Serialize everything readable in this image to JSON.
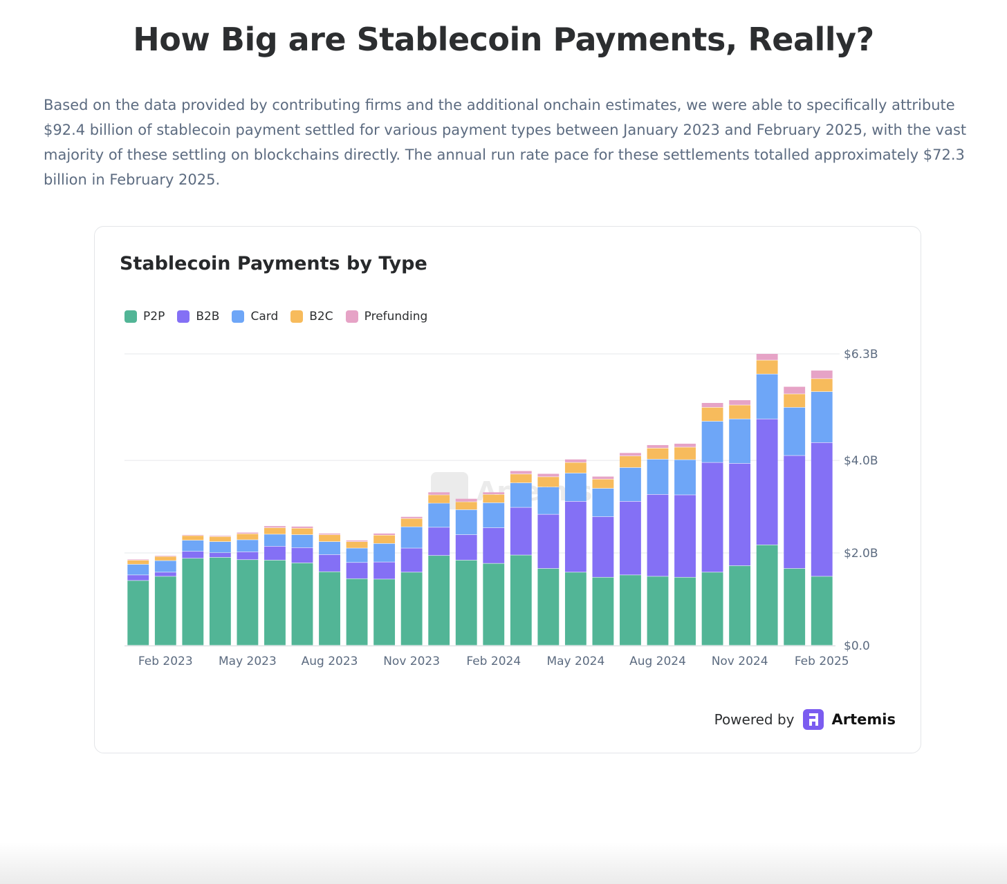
{
  "page": {
    "title": "How Big are Stablecoin Payments, Really?",
    "intro": "Based on the data provided by contributing firms and the additional onchain estimates, we were able to specifically attribute $92.4 billion of stablecoin payment settled for various payment types between January 2023 and February 2025, with the vast majority of these settling on blockchains directly. The annual run rate pace for these settlements totalled approximately $72.3 billion in February 2025."
  },
  "footer": {
    "powered_by": "Powered by",
    "brand": "Artemis"
  },
  "watermark": "Artemis",
  "chart_data": {
    "type": "bar",
    "stacked": true,
    "title": "Stablecoin Payments by Type",
    "xlabel": "",
    "ylabel": "",
    "legend_position": "top-left",
    "y_axis_side": "right",
    "grid": true,
    "ylim": [
      0,
      6.3
    ],
    "y_unit": "billion USD",
    "y_ticks": [
      0,
      2.0,
      4.0,
      6.3
    ],
    "y_tick_labels": [
      "$0.0",
      "$2.0B",
      "$4.0B",
      "$6.3B"
    ],
    "categories": [
      "Jan 2023",
      "Feb 2023",
      "Mar 2023",
      "Apr 2023",
      "May 2023",
      "Jun 2023",
      "Jul 2023",
      "Aug 2023",
      "Sep 2023",
      "Oct 2023",
      "Nov 2023",
      "Dec 2023",
      "Jan 2024",
      "Feb 2024",
      "Mar 2024",
      "Apr 2024",
      "May 2024",
      "Jun 2024",
      "Jul 2024",
      "Aug 2024",
      "Sep 2024",
      "Oct 2024",
      "Nov 2024",
      "Dec 2024",
      "Jan 2025",
      "Feb 2025"
    ],
    "x_tick_labels": [
      "Feb 2023",
      "May 2023",
      "Aug 2023",
      "Nov 2023",
      "Feb 2024",
      "May 2024",
      "Aug 2024",
      "Nov 2024",
      "Feb 2025"
    ],
    "series": [
      {
        "name": "P2P",
        "color": "#52b596",
        "values": [
          1.4,
          1.49,
          1.88,
          1.9,
          1.85,
          1.84,
          1.78,
          1.59,
          1.44,
          1.43,
          1.58,
          1.94,
          1.84,
          1.77,
          1.95,
          1.66,
          1.58,
          1.47,
          1.52,
          1.49,
          1.47,
          1.58,
          1.72,
          2.17,
          1.66,
          1.49
        ]
      },
      {
        "name": "B2B",
        "color": "#8470f5",
        "values": [
          0.12,
          0.09,
          0.15,
          0.1,
          0.17,
          0.3,
          0.33,
          0.37,
          0.35,
          0.37,
          0.52,
          0.61,
          0.55,
          0.77,
          1.03,
          1.17,
          1.53,
          1.31,
          1.59,
          1.77,
          1.78,
          2.37,
          2.21,
          2.72,
          2.44,
          2.89
        ]
      },
      {
        "name": "Card",
        "color": "#6ea6f7",
        "values": [
          0.23,
          0.25,
          0.24,
          0.24,
          0.26,
          0.26,
          0.28,
          0.28,
          0.31,
          0.4,
          0.46,
          0.52,
          0.54,
          0.54,
          0.53,
          0.59,
          0.61,
          0.61,
          0.73,
          0.76,
          0.76,
          0.89,
          0.96,
          0.97,
          1.04,
          1.1
        ]
      },
      {
        "name": "B2C",
        "color": "#f7bb5c",
        "values": [
          0.09,
          0.09,
          0.1,
          0.11,
          0.13,
          0.14,
          0.14,
          0.15,
          0.14,
          0.18,
          0.18,
          0.18,
          0.17,
          0.18,
          0.19,
          0.22,
          0.23,
          0.2,
          0.25,
          0.24,
          0.27,
          0.3,
          0.3,
          0.3,
          0.29,
          0.28
        ]
      },
      {
        "name": "Prefunding",
        "color": "#e6a3c6",
        "values": [
          0.02,
          0.02,
          0.02,
          0.02,
          0.03,
          0.04,
          0.04,
          0.03,
          0.03,
          0.04,
          0.04,
          0.06,
          0.07,
          0.05,
          0.07,
          0.07,
          0.07,
          0.06,
          0.07,
          0.07,
          0.08,
          0.1,
          0.11,
          0.14,
          0.16,
          0.18
        ]
      }
    ]
  }
}
